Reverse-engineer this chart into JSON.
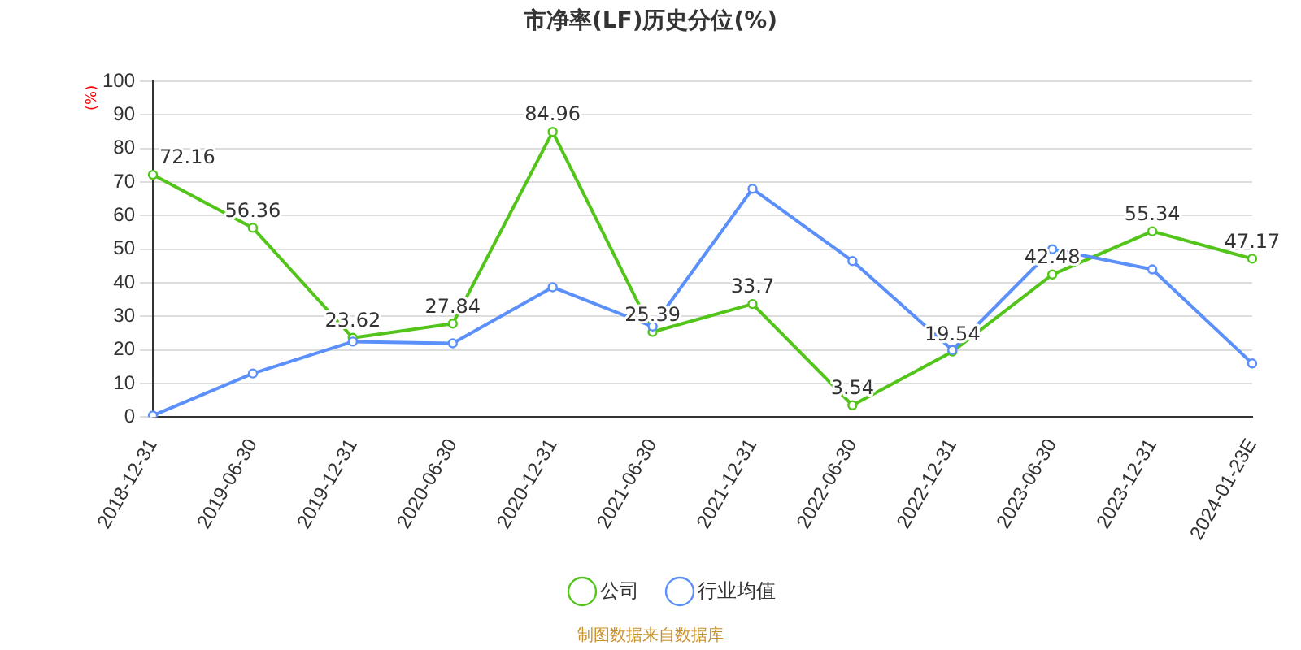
{
  "chart_data": {
    "type": "line",
    "title": "市净率(LF)历史分位(%)",
    "ylabel": "(%)",
    "categories": [
      "2018-12-31",
      "2019-06-30",
      "2019-12-31",
      "2020-06-30",
      "2020-12-31",
      "2021-06-30",
      "2021-12-31",
      "2022-06-30",
      "2022-12-31",
      "2023-06-30",
      "2023-12-31",
      "2024-01-23E"
    ],
    "series": [
      {
        "name": "公司",
        "color": "#52c41a",
        "values": [
          72.16,
          56.36,
          23.62,
          27.84,
          84.96,
          25.39,
          33.7,
          3.54,
          19.54,
          42.48,
          55.34,
          47.17
        ],
        "value_labels": [
          "72.16",
          "56.36",
          "23.62",
          "27.84",
          "84.96",
          "25.39",
          "33.7",
          "3.54",
          "19.54",
          "42.48",
          "55.34",
          "47.17"
        ]
      },
      {
        "name": "行业均值",
        "color": "#5b8ff9",
        "values": [
          0.5,
          13,
          22.5,
          22,
          38.7,
          27,
          68,
          46.5,
          20,
          50,
          44,
          16
        ]
      }
    ],
    "ylim": [
      0,
      100
    ],
    "yticks": [
      0,
      10,
      20,
      30,
      40,
      50,
      60,
      70,
      80,
      90,
      100
    ],
    "grid": "y",
    "legend": "bottom",
    "marker": "circle",
    "line_style": "solid",
    "annotations": [
      "制图数据来自数据库"
    ]
  }
}
